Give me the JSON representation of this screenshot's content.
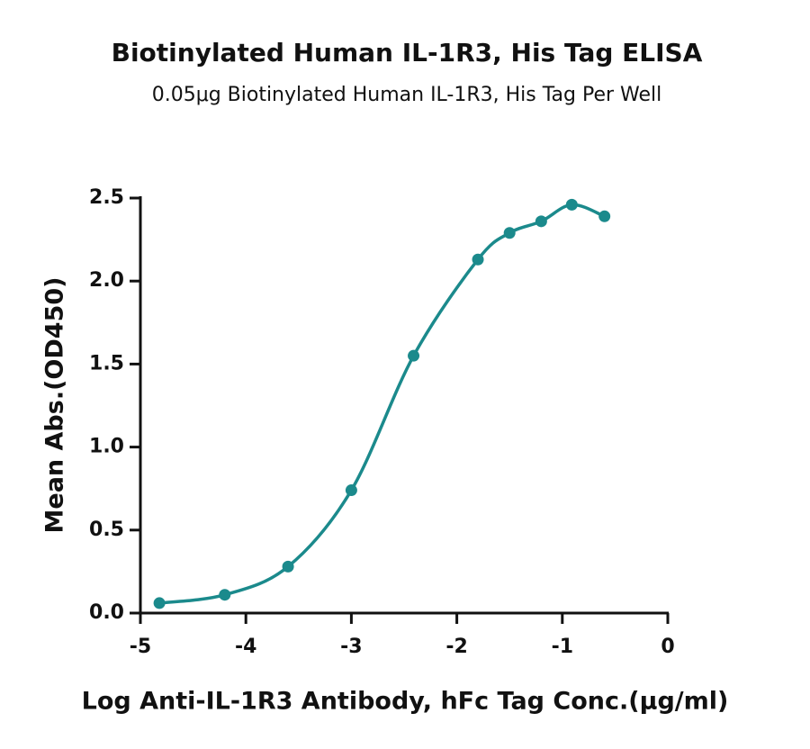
{
  "chart_data": {
    "type": "scatter",
    "title": "Biotinylated Human IL-1R3, His Tag ELISA",
    "subtitle": "0.05μg Biotinylated Human IL-1R3, His Tag Per Well",
    "x_label": "Log Anti-IL-1R3 Antibody, hFc  Tag Conc.(μg/ml)",
    "y_label": "Mean Abs.(OD450)",
    "series": [
      {
        "color": "#1b8a8c",
        "x": [
          -4.82,
          -4.2,
          -3.6,
          -3.0,
          -2.41,
          -1.8,
          -1.5,
          -1.2,
          -0.91,
          -0.6
        ],
        "values": [
          0.06,
          0.11,
          0.28,
          0.74,
          1.55,
          2.13,
          2.29,
          2.36,
          2.46,
          2.39
        ]
      }
    ],
    "xlim": [
      -5,
      0
    ],
    "xticks": [
      -5,
      -4,
      -3,
      -2,
      -1,
      0
    ],
    "ylim": [
      0,
      2.5
    ],
    "yticks": [
      {
        "value": 0,
        "label": "0.0"
      },
      {
        "value": 0.5,
        "label": "0.5"
      },
      {
        "value": 1,
        "label": "1.0"
      },
      {
        "value": 1.5,
        "label": "1.5"
      },
      {
        "value": 2,
        "label": "2.0"
      },
      {
        "value": 2.5,
        "label": "2.5"
      }
    ]
  }
}
